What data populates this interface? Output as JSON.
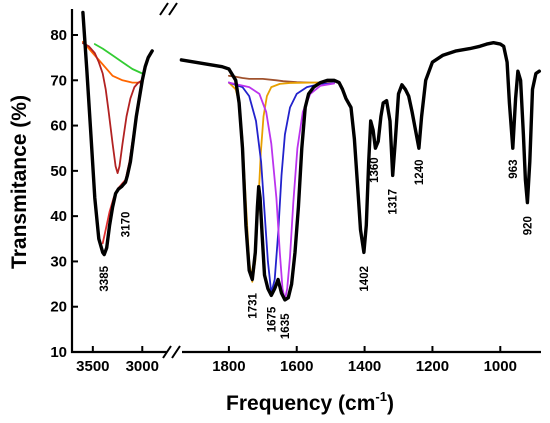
{
  "chart_data": {
    "type": "line",
    "title": "",
    "xlabel": "Frequency (cm",
    "xlabel_sup": "-1",
    "xlabel_close": ")",
    "ylabel": "Transmitance (%)",
    "ylim": [
      10,
      85
    ],
    "y_ticks": [
      10,
      20,
      30,
      40,
      50,
      60,
      70,
      80
    ],
    "x_axis_broken": true,
    "x_segments": [
      {
        "range": [
          3650,
          2750
        ],
        "ticks": [
          3500,
          3000
        ]
      },
      {
        "range": [
          1950,
          880
        ],
        "ticks": [
          1800,
          1600,
          1400,
          1200,
          1000
        ]
      }
    ],
    "x_tick_labels": [
      "3500",
      "3000",
      "1800",
      "1600",
      "1400",
      "1200",
      "1000"
    ],
    "grid": false,
    "legend": "none",
    "series": [
      {
        "color": "#000000",
        "segment": 0,
        "points": [
          [
            3600,
            85
          ],
          [
            3560,
            72
          ],
          [
            3520,
            58
          ],
          [
            3480,
            44
          ],
          [
            3440,
            35
          ],
          [
            3400,
            32
          ],
          [
            3385,
            31.5
          ],
          [
            3360,
            33
          ],
          [
            3330,
            38
          ],
          [
            3300,
            42
          ],
          [
            3270,
            45
          ],
          [
            3240,
            46
          ],
          [
            3210,
            46.5
          ],
          [
            3190,
            47
          ],
          [
            3170,
            47.5
          ],
          [
            3150,
            49
          ],
          [
            3120,
            52
          ],
          [
            3090,
            57
          ],
          [
            3060,
            62
          ],
          [
            3030,
            66
          ],
          [
            3000,
            70
          ],
          [
            2970,
            73
          ],
          [
            2940,
            75
          ],
          [
            2900,
            76.5
          ]
        ]
      },
      {
        "color": "#000000",
        "segment": 1,
        "points": [
          [
            1940,
            74.5
          ],
          [
            1900,
            74
          ],
          [
            1860,
            73.5
          ],
          [
            1820,
            73
          ],
          [
            1800,
            72.5
          ],
          [
            1780,
            70
          ],
          [
            1770,
            65
          ],
          [
            1760,
            55
          ],
          [
            1750,
            38
          ],
          [
            1740,
            28
          ],
          [
            1731,
            26
          ],
          [
            1722,
            32
          ],
          [
            1716,
            42
          ],
          [
            1712,
            46.5
          ],
          [
            1708,
            44
          ],
          [
            1702,
            36
          ],
          [
            1695,
            27
          ],
          [
            1685,
            24
          ],
          [
            1675,
            22.5
          ],
          [
            1665,
            24
          ],
          [
            1655,
            26
          ],
          [
            1645,
            23
          ],
          [
            1635,
            21.5
          ],
          [
            1625,
            22
          ],
          [
            1615,
            25
          ],
          [
            1605,
            32
          ],
          [
            1595,
            42
          ],
          [
            1585,
            55
          ],
          [
            1575,
            64
          ],
          [
            1565,
            67
          ],
          [
            1550,
            68.5
          ],
          [
            1530,
            69.5
          ],
          [
            1510,
            70
          ],
          [
            1490,
            70
          ],
          [
            1475,
            69.5
          ],
          [
            1465,
            68
          ],
          [
            1455,
            66
          ],
          [
            1440,
            64
          ],
          [
            1430,
            57
          ],
          [
            1420,
            46
          ],
          [
            1412,
            37
          ],
          [
            1402,
            32
          ],
          [
            1395,
            38
          ],
          [
            1388,
            52
          ],
          [
            1382,
            61
          ],
          [
            1375,
            59
          ],
          [
            1368,
            55
          ],
          [
            1360,
            56.5
          ],
          [
            1352,
            62
          ],
          [
            1345,
            65
          ],
          [
            1335,
            65.5
          ],
          [
            1325,
            61
          ],
          [
            1317,
            49
          ],
          [
            1310,
            56
          ],
          [
            1300,
            67
          ],
          [
            1290,
            69
          ],
          [
            1280,
            68
          ],
          [
            1270,
            66.5
          ],
          [
            1260,
            63
          ],
          [
            1250,
            59
          ],
          [
            1240,
            55
          ],
          [
            1232,
            62
          ],
          [
            1220,
            70
          ],
          [
            1200,
            74
          ],
          [
            1170,
            75.5
          ],
          [
            1130,
            76.5
          ],
          [
            1090,
            77
          ],
          [
            1060,
            77.5
          ],
          [
            1040,
            78
          ],
          [
            1020,
            78.3
          ],
          [
            1000,
            78
          ],
          [
            990,
            77.5
          ],
          [
            980,
            74
          ],
          [
            973,
            65
          ],
          [
            963,
            55
          ],
          [
            955,
            66
          ],
          [
            948,
            72
          ],
          [
            940,
            70
          ],
          [
            932,
            58
          ],
          [
            926,
            48
          ],
          [
            920,
            43
          ],
          [
            913,
            52
          ],
          [
            905,
            68
          ],
          [
            895,
            71.5
          ],
          [
            885,
            72
          ]
        ]
      },
      {
        "color": "#ff6600",
        "segment": 0,
        "points": [
          [
            3600,
            78.5
          ],
          [
            3540,
            77
          ],
          [
            3480,
            75.5
          ],
          [
            3400,
            73.5
          ],
          [
            3300,
            71
          ],
          [
            3200,
            70
          ],
          [
            3100,
            69.5
          ],
          [
            3000,
            69.5
          ]
        ]
      },
      {
        "color": "#33cc33",
        "segment": 0,
        "points": [
          [
            3480,
            78
          ],
          [
            3400,
            77
          ],
          [
            3300,
            75.5
          ],
          [
            3200,
            74
          ],
          [
            3100,
            72.5
          ],
          [
            3000,
            71.5
          ]
        ]
      },
      {
        "color": "#b22222",
        "segment": 0,
        "points": [
          [
            3600,
            78.2
          ],
          [
            3540,
            77.5
          ],
          [
            3480,
            76
          ],
          [
            3440,
            74
          ],
          [
            3400,
            71.5
          ],
          [
            3370,
            68
          ],
          [
            3340,
            63
          ],
          [
            3300,
            56
          ],
          [
            3270,
            51
          ],
          [
            3250,
            49.5
          ],
          [
            3230,
            51
          ],
          [
            3200,
            56
          ],
          [
            3160,
            62
          ],
          [
            3120,
            66
          ],
          [
            3080,
            68.5
          ],
          [
            3040,
            69.5
          ],
          [
            3000,
            70
          ]
        ]
      },
      {
        "color": "#e03030",
        "segment": 0,
        "points": [
          [
            3400,
            34
          ],
          [
            3370,
            37
          ],
          [
            3330,
            41
          ],
          [
            3290,
            44
          ],
          [
            3250,
            46
          ],
          [
            3210,
            47
          ],
          [
            3170,
            48
          ],
          [
            3130,
            52
          ],
          [
            3090,
            58
          ],
          [
            3050,
            64
          ],
          [
            3020,
            68
          ],
          [
            3000,
            70
          ]
        ]
      },
      {
        "color": "#a0522d",
        "segment": 1,
        "points": [
          [
            1800,
            71
          ],
          [
            1780,
            70.8
          ],
          [
            1760,
            70.5
          ],
          [
            1740,
            70.3
          ],
          [
            1720,
            70.3
          ],
          [
            1700,
            70.3
          ],
          [
            1660,
            70
          ],
          [
            1640,
            69.8
          ],
          [
            1600,
            69.6
          ],
          [
            1560,
            69.5
          ],
          [
            1520,
            69.5
          ],
          [
            1490,
            69.5
          ]
        ]
      },
      {
        "color": "#e8a000",
        "segment": 1,
        "points": [
          [
            1800,
            69.5
          ],
          [
            1780,
            68
          ],
          [
            1770,
            65
          ],
          [
            1760,
            57
          ],
          [
            1750,
            43
          ],
          [
            1740,
            30
          ],
          [
            1731,
            25.5
          ],
          [
            1722,
            30
          ],
          [
            1714,
            42
          ],
          [
            1706,
            54
          ],
          [
            1698,
            62
          ],
          [
            1688,
            66.5
          ],
          [
            1675,
            68.5
          ],
          [
            1650,
            69.2
          ],
          [
            1620,
            69.4
          ],
          [
            1560,
            69.5
          ],
          [
            1490,
            69.5
          ]
        ]
      },
      {
        "color": "#2222cc",
        "segment": 1,
        "points": [
          [
            1800,
            69.5
          ],
          [
            1760,
            68.5
          ],
          [
            1740,
            66.5
          ],
          [
            1720,
            61
          ],
          [
            1705,
            52
          ],
          [
            1695,
            41
          ],
          [
            1685,
            30
          ],
          [
            1675,
            23
          ],
          [
            1665,
            26
          ],
          [
            1655,
            36
          ],
          [
            1645,
            49
          ],
          [
            1635,
            58
          ],
          [
            1620,
            64
          ],
          [
            1600,
            67
          ],
          [
            1570,
            68.5
          ],
          [
            1530,
            69.2
          ],
          [
            1490,
            69.4
          ]
        ]
      },
      {
        "color": "#bb33ee",
        "segment": 1,
        "points": [
          [
            1800,
            69.5
          ],
          [
            1740,
            68.5
          ],
          [
            1710,
            67
          ],
          [
            1690,
            63
          ],
          [
            1675,
            56
          ],
          [
            1660,
            44
          ],
          [
            1650,
            32
          ],
          [
            1642,
            24
          ],
          [
            1635,
            21.5
          ],
          [
            1628,
            24
          ],
          [
            1620,
            31
          ],
          [
            1610,
            43
          ],
          [
            1598,
            55
          ],
          [
            1582,
            63
          ],
          [
            1560,
            67
          ],
          [
            1530,
            68.8
          ],
          [
            1490,
            69.3
          ]
        ]
      }
    ],
    "annotations": [
      {
        "text": "3385",
        "x": 3385,
        "y": 29,
        "seg": 0
      },
      {
        "text": "3170",
        "x": 3170,
        "y": 41,
        "seg": 0
      },
      {
        "text": "1731",
        "x": 1731,
        "y": 23,
        "seg": 1
      },
      {
        "text": "1675",
        "x": 1675,
        "y": 20,
        "seg": 1
      },
      {
        "text": "1635",
        "x": 1635,
        "y": 18.5,
        "seg": 1
      },
      {
        "text": "1402",
        "x": 1402,
        "y": 29,
        "seg": 1
      },
      {
        "text": "1360",
        "x": 1372,
        "y": 53,
        "seg": 1
      },
      {
        "text": "1317",
        "x": 1317,
        "y": 46,
        "seg": 1
      },
      {
        "text": "1240",
        "x": 1240,
        "y": 52.5,
        "seg": 1
      },
      {
        "text": "963",
        "x": 963,
        "y": 52.5,
        "seg": 1
      },
      {
        "text": "920",
        "x": 920,
        "y": 40,
        "seg": 1
      }
    ]
  }
}
